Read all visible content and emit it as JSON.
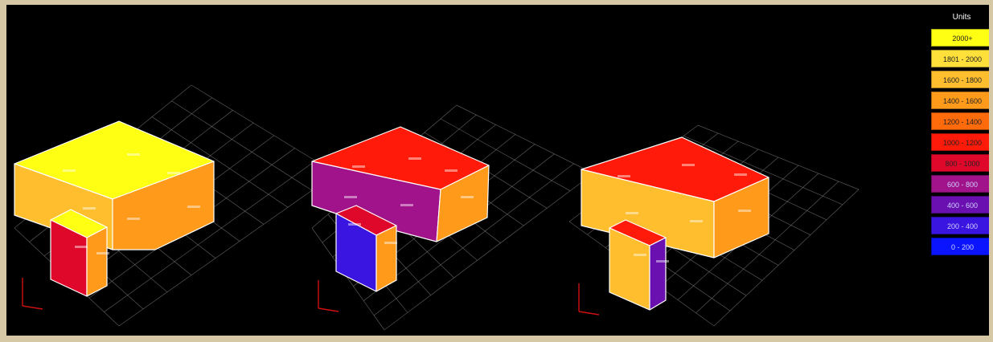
{
  "legend": {
    "title": "Units",
    "items": [
      {
        "label": "2000+",
        "color": "#ffff14"
      },
      {
        "label": "1801 - 2000",
        "color": "#ffe03a"
      },
      {
        "label": "1600 - 1800",
        "color": "#ffbe2e"
      },
      {
        "label": "1400 - 1600",
        "color": "#ff9a1a"
      },
      {
        "label": "1200 - 1400",
        "color": "#ff6a0a"
      },
      {
        "label": "1000 - 1200",
        "color": "#ff1a0a"
      },
      {
        "label": "800 - 1000",
        "color": "#e0082a"
      },
      {
        "label": "600 - 800",
        "color": "#a0138a"
      },
      {
        "label": "400 - 600",
        "color": "#6a10b0"
      },
      {
        "label": "200 - 400",
        "color": "#3a14e0"
      },
      {
        "label": "0 - 200",
        "color": "#0a14ff"
      }
    ]
  },
  "colors": {
    "background": "#000000",
    "grid": "#9a9a9a",
    "edge": "#ffffff",
    "frame": "#d6c8a4"
  }
}
